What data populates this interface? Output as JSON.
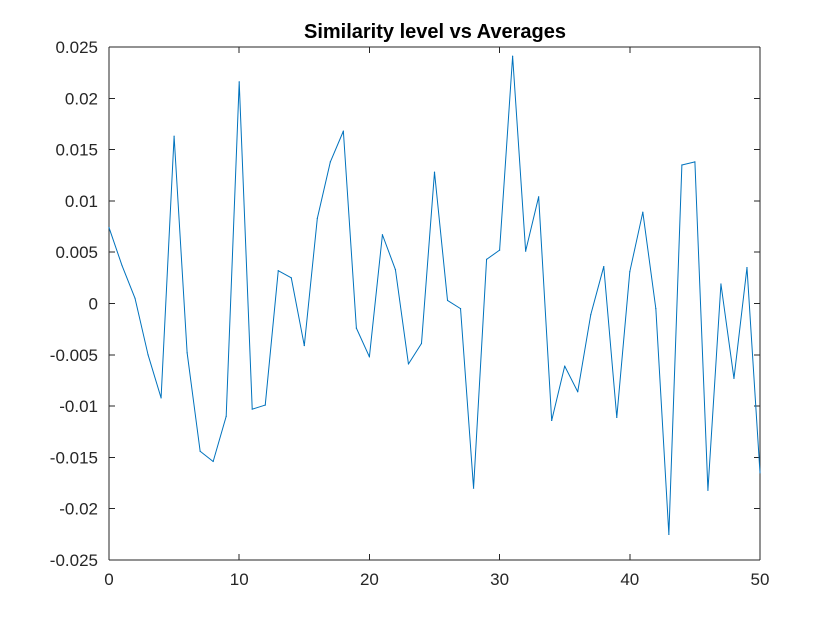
{
  "chart_data": {
    "type": "line",
    "title": "Similarity level vs Averages",
    "xlabel": "",
    "ylabel": "",
    "xlim": [
      0,
      50
    ],
    "ylim": [
      -0.025,
      0.025
    ],
    "xticks": [
      0,
      10,
      20,
      30,
      40,
      50
    ],
    "xtick_labels": [
      "0",
      "10",
      "20",
      "30",
      "40",
      "50"
    ],
    "yticks": [
      -0.025,
      -0.02,
      -0.015,
      -0.01,
      -0.005,
      0,
      0.005,
      0.01,
      0.015,
      0.02,
      0.025
    ],
    "ytick_labels": [
      "-0.025",
      "-0.02",
      "-0.015",
      "-0.01",
      "-0.005",
      "0",
      "0.005",
      "0.01",
      "0.015",
      "0.02",
      "0.025"
    ],
    "grid": false,
    "box": true,
    "series": [
      {
        "color": "#0072bd",
        "x": [
          0,
          1,
          2,
          3,
          4,
          5,
          6,
          7,
          8,
          9,
          10,
          11,
          12,
          13,
          14,
          15,
          16,
          17,
          18,
          19,
          20,
          21,
          22,
          23,
          24,
          25,
          26,
          27,
          28,
          29,
          30,
          31,
          32,
          33,
          34,
          35,
          36,
          37,
          38,
          39,
          40,
          41,
          42,
          43,
          44,
          45,
          46,
          47,
          48,
          49,
          50
        ],
        "y": [
          0.0074,
          0.0037,
          0.0005,
          -0.005,
          -0.0092,
          0.0163,
          -0.0048,
          -0.0144,
          -0.0154,
          -0.011,
          0.0216,
          -0.0103,
          -0.0099,
          0.0032,
          0.0025,
          -0.0041,
          0.0083,
          0.0138,
          0.0168,
          -0.0024,
          -0.0052,
          0.0067,
          0.0033,
          -0.0059,
          -0.0039,
          0.0128,
          0.0003,
          -0.0005,
          -0.018,
          0.0043,
          0.0052,
          0.0241,
          0.0051,
          0.0104,
          -0.0114,
          -0.0061,
          -0.0086,
          -0.0011,
          0.0036,
          -0.0111,
          0.0031,
          0.0089,
          -0.0005,
          -0.0225,
          0.0135,
          0.0138,
          -0.0182,
          0.0019,
          -0.0073,
          0.0035,
          -0.0165
        ]
      }
    ]
  }
}
